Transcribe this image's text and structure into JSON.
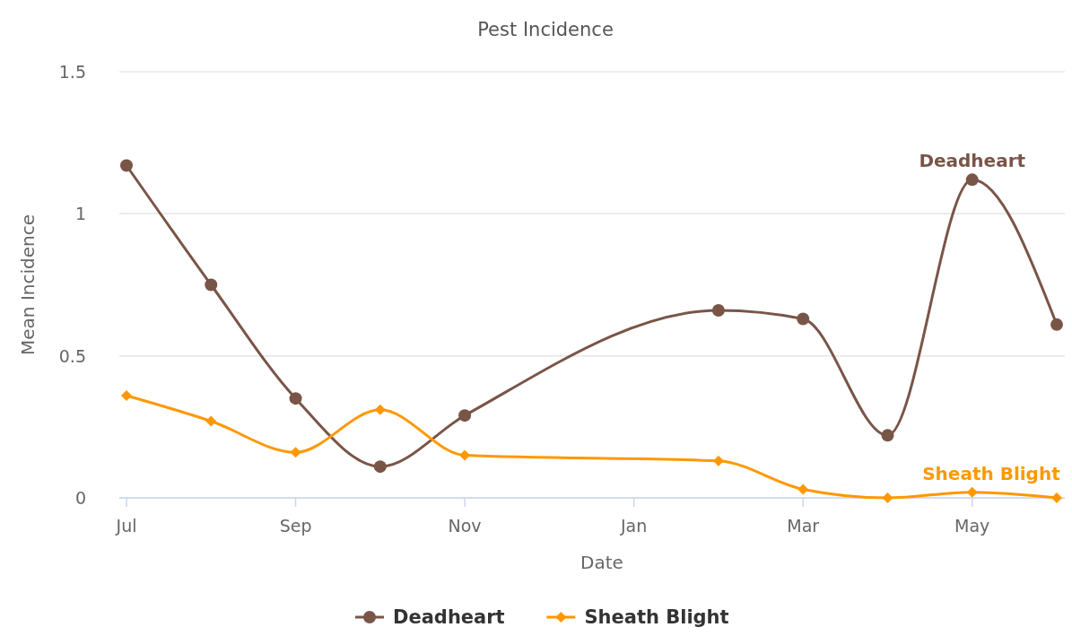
{
  "chart_data": {
    "type": "line",
    "title": "Pest Incidence",
    "xlabel": "Date",
    "ylabel": "Mean Incidence",
    "categories": [
      "Jul",
      null,
      "Sep",
      null,
      "Nov",
      null,
      "Jan",
      null,
      "Mar",
      null,
      "May",
      null
    ],
    "series": [
      {
        "name": "Deadheart",
        "color": "#795548",
        "marker": "circle",
        "values": [
          1.17,
          0.75,
          0.35,
          0.11,
          0.29,
          null,
          null,
          0.66,
          0.63,
          0.22,
          1.12,
          0.61
        ]
      },
      {
        "name": "Sheath Blight",
        "color": "#ff9800",
        "marker": "diamond",
        "values": [
          0.36,
          0.27,
          0.16,
          0.31,
          0.15,
          null,
          null,
          0.13,
          0.03,
          0,
          0.02,
          0
        ]
      }
    ],
    "ylim": [
      0,
      1.5
    ],
    "yticks": [
      0,
      0.5,
      1,
      1.5
    ],
    "grid": "y",
    "legend": "bottom"
  }
}
